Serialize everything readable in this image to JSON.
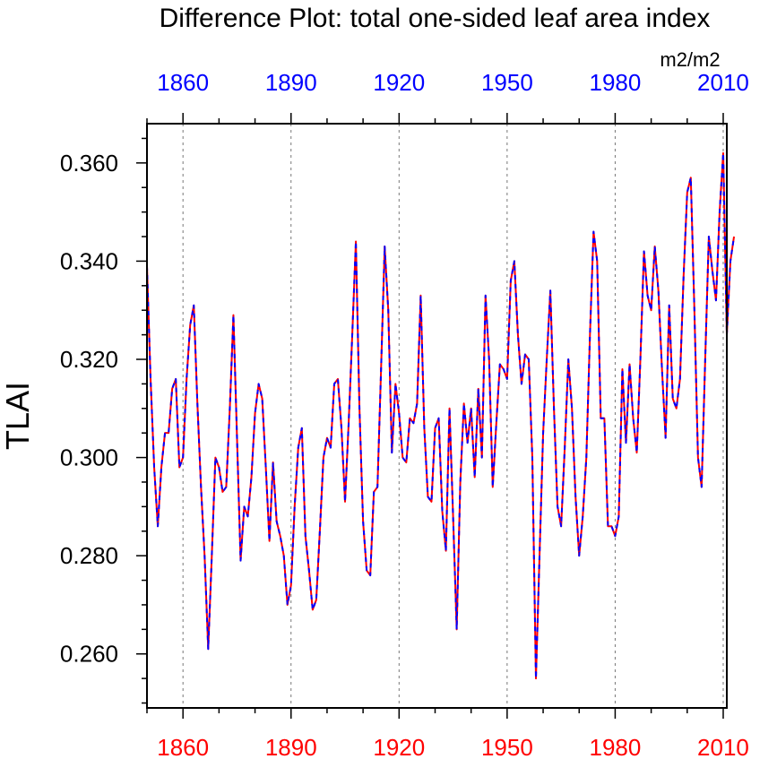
{
  "chart_data": {
    "type": "line",
    "title": "Difference Plot: total one-sided leaf area index",
    "units": "m2/m2",
    "ylabel": "TLAI",
    "xlabel": "",
    "xlim": [
      1850,
      2011
    ],
    "ylim": [
      0.249,
      0.368
    ],
    "x_ticks": [
      1860,
      1890,
      1920,
      1950,
      1980,
      2010
    ],
    "x_tick_labels": [
      "1860",
      "1890",
      "1920",
      "1950",
      "1980",
      "2010"
    ],
    "y_ticks": [
      0.26,
      0.28,
      0.3,
      0.32,
      0.34,
      0.36
    ],
    "y_tick_labels": [
      "0.260",
      "0.280",
      "0.300",
      "0.320",
      "0.340",
      "0.360"
    ],
    "grid": "vertical dashed at major x ticks",
    "colors": {
      "top_axis_labels": "#0000ff",
      "bottom_axis_labels": "#ff0000",
      "series_a": "#ff0000",
      "series_b": "#0000ff",
      "grid": "#777777",
      "axis": "#000000"
    },
    "x_start": 1850,
    "x_step": 1,
    "series": [
      {
        "name": "series-red-solid",
        "style": "solid",
        "color": "#ff0000",
        "values": [
          0.339,
          0.316,
          0.298,
          0.286,
          0.298,
          0.305,
          0.305,
          0.314,
          0.316,
          0.298,
          0.3,
          0.316,
          0.327,
          0.331,
          0.311,
          0.294,
          0.28,
          0.261,
          0.28,
          0.3,
          0.298,
          0.293,
          0.294,
          0.31,
          0.329,
          0.304,
          0.279,
          0.29,
          0.288,
          0.296,
          0.309,
          0.315,
          0.312,
          0.298,
          0.283,
          0.299,
          0.287,
          0.284,
          0.28,
          0.27,
          0.274,
          0.29,
          0.302,
          0.306,
          0.284,
          0.277,
          0.269,
          0.271,
          0.285,
          0.3,
          0.304,
          0.302,
          0.315,
          0.316,
          0.306,
          0.291,
          0.307,
          0.325,
          0.344,
          0.31,
          0.287,
          0.277,
          0.276,
          0.293,
          0.294,
          0.318,
          0.343,
          0.33,
          0.301,
          0.315,
          0.309,
          0.3,
          0.299,
          0.308,
          0.307,
          0.311,
          0.333,
          0.306,
          0.292,
          0.291,
          0.306,
          0.308,
          0.289,
          0.281,
          0.31,
          0.288,
          0.265,
          0.295,
          0.311,
          0.303,
          0.31,
          0.296,
          0.314,
          0.3,
          0.333,
          0.32,
          0.294,
          0.307,
          0.319,
          0.318,
          0.316,
          0.336,
          0.34,
          0.325,
          0.315,
          0.321,
          0.32,
          0.3,
          0.255,
          0.28,
          0.305,
          0.32,
          0.334,
          0.31,
          0.29,
          0.286,
          0.302,
          0.32,
          0.31,
          0.292,
          0.28,
          0.288,
          0.3,
          0.325,
          0.346,
          0.34,
          0.308,
          0.308,
          0.286,
          0.286,
          0.284,
          0.288,
          0.318,
          0.303,
          0.319,
          0.308,
          0.301,
          0.32,
          0.342,
          0.333,
          0.33,
          0.343,
          0.334,
          0.318,
          0.304,
          0.331,
          0.312,
          0.31,
          0.316,
          0.337,
          0.354,
          0.357,
          0.33,
          0.3,
          0.294,
          0.32,
          0.345,
          0.338,
          0.332,
          0.35,
          0.362,
          0.325,
          0.34,
          0.345
        ]
      },
      {
        "name": "series-blue-dashed",
        "style": "dashed",
        "color": "#0000ff",
        "values": [
          0.339,
          0.316,
          0.298,
          0.286,
          0.298,
          0.305,
          0.305,
          0.314,
          0.316,
          0.298,
          0.3,
          0.316,
          0.327,
          0.331,
          0.311,
          0.294,
          0.28,
          0.261,
          0.28,
          0.3,
          0.298,
          0.293,
          0.294,
          0.31,
          0.329,
          0.304,
          0.279,
          0.29,
          0.288,
          0.296,
          0.309,
          0.315,
          0.312,
          0.298,
          0.283,
          0.299,
          0.287,
          0.284,
          0.28,
          0.27,
          0.274,
          0.29,
          0.302,
          0.306,
          0.284,
          0.277,
          0.269,
          0.271,
          0.285,
          0.3,
          0.304,
          0.302,
          0.315,
          0.316,
          0.306,
          0.291,
          0.307,
          0.325,
          0.344,
          0.31,
          0.287,
          0.277,
          0.276,
          0.293,
          0.294,
          0.318,
          0.343,
          0.33,
          0.301,
          0.315,
          0.309,
          0.3,
          0.299,
          0.308,
          0.307,
          0.311,
          0.333,
          0.306,
          0.292,
          0.291,
          0.306,
          0.308,
          0.289,
          0.281,
          0.31,
          0.288,
          0.265,
          0.295,
          0.311,
          0.303,
          0.31,
          0.296,
          0.314,
          0.3,
          0.333,
          0.32,
          0.294,
          0.307,
          0.319,
          0.318,
          0.316,
          0.336,
          0.34,
          0.325,
          0.315,
          0.321,
          0.32,
          0.3,
          0.255,
          0.28,
          0.305,
          0.32,
          0.334,
          0.31,
          0.29,
          0.286,
          0.302,
          0.32,
          0.31,
          0.292,
          0.28,
          0.288,
          0.3,
          0.325,
          0.346,
          0.34,
          0.308,
          0.308,
          0.286,
          0.286,
          0.284,
          0.288,
          0.318,
          0.303,
          0.319,
          0.308,
          0.301,
          0.32,
          0.342,
          0.333,
          0.33,
          0.343,
          0.334,
          0.318,
          0.304,
          0.331,
          0.312,
          0.31,
          0.316,
          0.337,
          0.354,
          0.357,
          0.33,
          0.3,
          0.294,
          0.32,
          0.345,
          0.338,
          0.332,
          0.35,
          0.362,
          0.325,
          0.34,
          0.345
        ]
      }
    ]
  }
}
